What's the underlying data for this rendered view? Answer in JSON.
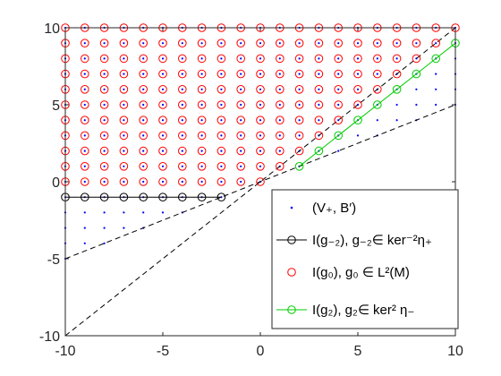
{
  "chart_data": {
    "type": "scatter",
    "title": "",
    "xlabel": "",
    "ylabel": "",
    "xlim": [
      -10,
      10
    ],
    "ylim": [
      -10,
      10
    ],
    "xticks": [
      -10,
      -5,
      0,
      5,
      10
    ],
    "yticks": [
      -10,
      -5,
      0,
      5,
      10
    ],
    "x_tick_labels": [
      "-10",
      "-5",
      "0",
      "5",
      "10"
    ],
    "y_tick_labels": [
      "-10",
      "-5",
      "0",
      "5",
      "10"
    ],
    "grid": false,
    "legend_position": "bottom-right",
    "colors": {
      "axis": "#262626",
      "blue_dots": "#0000ff",
      "black": "#000000",
      "red": "#ff0000",
      "green": "#00cc00",
      "dashed": "#000000"
    },
    "dashed_lines": [
      {
        "x": [
          -10,
          10
        ],
        "y": [
          -5,
          5
        ]
      },
      {
        "x": [
          -10,
          10
        ],
        "y": [
          -10,
          10
        ]
      }
    ],
    "series": [
      {
        "name": "(V₊, B′)",
        "marker": "dot",
        "region": "integer lattice points with y ≥ x/2 (x from -10 to 10)"
      },
      {
        "name": "I(g₋₂), g₋₂∈ ker⁻²η₊",
        "marker": "circle-line",
        "x": [
          -10,
          -10,
          -9,
          -8,
          -7,
          -6,
          -5,
          -4,
          -3,
          -2
        ],
        "y": [
          10,
          -1,
          -1,
          -1,
          -1,
          -1,
          -1,
          -1,
          -1,
          -1
        ]
      },
      {
        "name": "I(g₀), g₀ ∈ L²(M)",
        "marker": "circle",
        "region": "integer lattice points with x from -10 to 10, y from 0 to 10 and y ≥ x"
      },
      {
        "name": "I(g₂), g₂∈ ker² η₋",
        "marker": "circle-line",
        "x": [
          2,
          3,
          4,
          5,
          6,
          7,
          8,
          9,
          10
        ],
        "y": [
          1,
          2,
          3,
          4,
          5,
          6,
          7,
          8,
          9
        ]
      }
    ]
  },
  "legend": {
    "v_plus": "(V₊, B′)",
    "g_minus2": "I(g₋₂), g₋₂∈ ker⁻²η₊",
    "g0": "I(g₀), g₀ ∈ L²(M)",
    "g2": "I(g₂), g₂∈ ker² η₋"
  }
}
